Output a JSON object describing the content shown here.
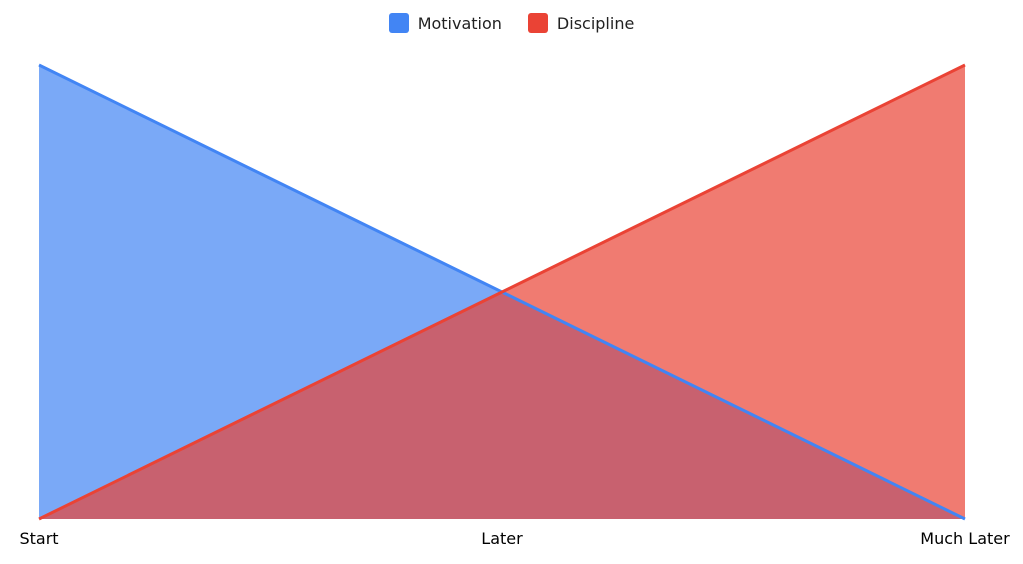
{
  "chart_data": {
    "type": "area",
    "title": "",
    "xlabel": "",
    "ylabel": "",
    "categories": [
      "Start",
      "Later",
      "Much Later"
    ],
    "series": [
      {
        "name": "Motivation",
        "values": [
          100,
          50,
          0
        ],
        "color": "#4285F4"
      },
      {
        "name": "Discipline",
        "values": [
          0,
          50,
          100
        ],
        "color": "#EA4335"
      }
    ],
    "ylim": [
      0,
      100
    ],
    "fill_opacity": 0.7,
    "grid": false,
    "y_axis_visible": false,
    "legend": "top-center"
  }
}
